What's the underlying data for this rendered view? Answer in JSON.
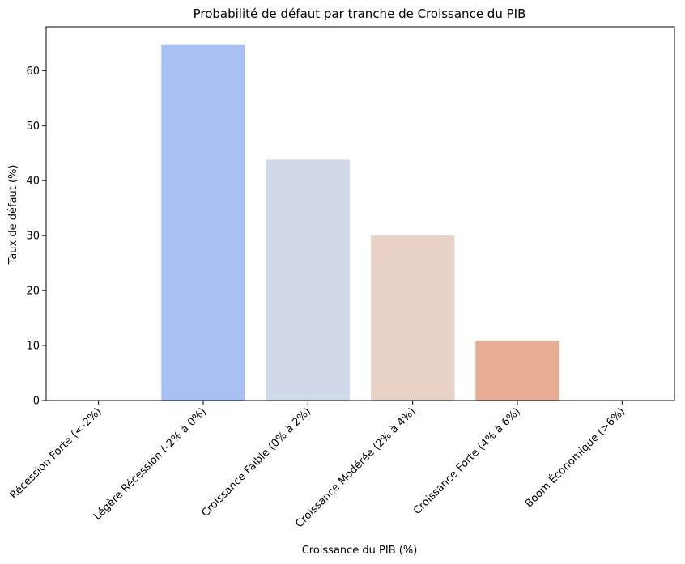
{
  "chart_data": {
    "type": "bar",
    "title": "Probabilité de défaut par tranche de Croissance du PIB",
    "xlabel": "Croissance du PIB (%)",
    "ylabel": "Taux de défaut (%)",
    "categories": [
      "Récession Forte (<-2%)",
      "Légère Récession (-2% à 0%)",
      "Croissance Faible (0% à 2%)",
      "Croissance Modérée (2% à 4%)",
      "Croissance Forte (4% à 6%)",
      "Boom Économique (>6%)"
    ],
    "values": [
      0,
      64.8,
      43.8,
      30.0,
      10.9,
      0
    ],
    "colors": [
      "#7b9ff9",
      "#a6c0f4",
      "#cfd9ea",
      "#e8d2c6",
      "#e8ae94",
      "#d97f65"
    ],
    "ylim": [
      0,
      68
    ],
    "yticks": [
      0,
      10,
      20,
      30,
      40,
      50,
      60
    ],
    "grid": false,
    "legend": "none"
  }
}
